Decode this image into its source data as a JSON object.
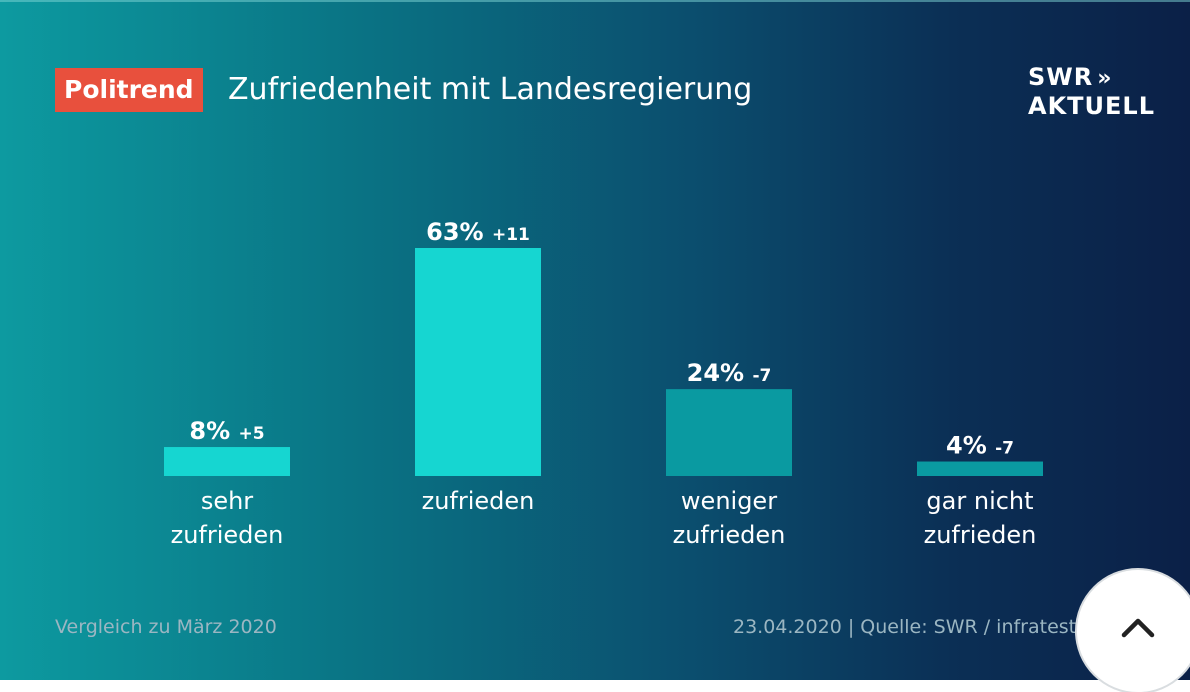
{
  "header": {
    "badge": "Politrend",
    "title": "Zufriedenheit mit Landesregierung"
  },
  "logo": {
    "line1": "SWR",
    "line1_mark": "»",
    "line2": "AKTUELL"
  },
  "chart_data": {
    "type": "bar",
    "title": "Zufriedenheit mit Landesregierung",
    "categories": [
      [
        "sehr",
        "zufrieden"
      ],
      [
        "zufrieden"
      ],
      [
        "weniger",
        "zufrieden"
      ],
      [
        "gar nicht",
        "zufrieden"
      ]
    ],
    "values": [
      8,
      63,
      24,
      4
    ],
    "value_labels": [
      "8%",
      "63%",
      "24%",
      "4%"
    ],
    "changes": [
      "+5",
      "+11",
      "-7",
      "-7"
    ],
    "ylim": [
      0,
      63
    ],
    "grid": false
  },
  "colors": {
    "bar_positive": "#16d6d1",
    "bar_negative": "#0a9aa1",
    "badge": "#e8503d",
    "text": "#ffffff",
    "footer_text": "#9bb6c2"
  },
  "footer": {
    "comparison": "Vergleich zu März 2020",
    "source": "23.04.2020 | Quelle: SWR / infratest"
  },
  "scroll_button": {
    "icon": "chevron-up-icon"
  }
}
